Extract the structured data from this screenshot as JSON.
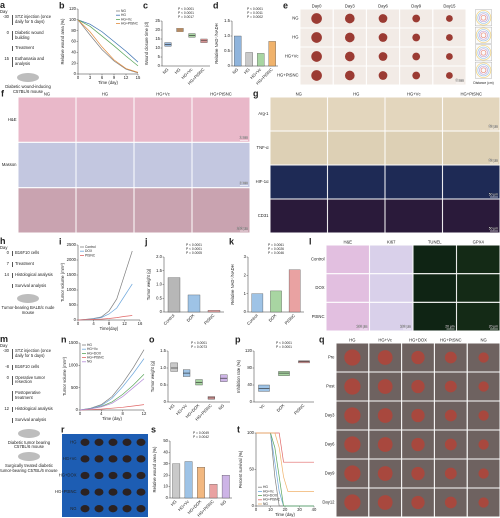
{
  "chart_data": [
    {
      "panel": "b",
      "type": "line",
      "xlabel": "Time (day)",
      "ylabel": "Relative wound area (%)",
      "x": [
        0,
        3,
        6,
        9,
        12,
        15
      ],
      "xlim": [
        0,
        15
      ],
      "xticks": [
        0,
        3,
        6,
        9,
        12,
        15
      ],
      "ylim": [
        0,
        120
      ],
      "yticks": [
        0,
        20,
        40,
        60,
        80,
        100,
        120
      ],
      "legend": "upper right",
      "series": [
        {
          "name": "NG",
          "color": "#7f7f7f",
          "values": [
            100,
            72,
            45,
            24,
            9,
            2
          ]
        },
        {
          "name": "HG",
          "color": "#3a6fb0",
          "values": [
            100,
            92,
            78,
            60,
            42,
            22
          ]
        },
        {
          "name": "HG+Vc",
          "color": "#5aa55a",
          "values": [
            100,
            88,
            70,
            52,
            33,
            15
          ]
        },
        {
          "name": "HG+PtSNC",
          "color": "#e08a3c",
          "values": [
            100,
            78,
            50,
            26,
            10,
            3
          ]
        }
      ]
    },
    {
      "panel": "c",
      "type": "box",
      "ylabel": "Wound closure time (d)",
      "categories": [
        "NG",
        "HG",
        "HG+Vc",
        "HG+PtSNC"
      ],
      "ylim": [
        0,
        25
      ],
      "yticks": [
        0,
        5,
        10,
        15,
        20,
        25
      ],
      "q1": [
        11,
        19,
        16,
        13
      ],
      "median": [
        12,
        20,
        17,
        14
      ],
      "q3": [
        13,
        21,
        18,
        15
      ],
      "colors": [
        "#9bbbe0",
        "#f2b880",
        "#a8d5a2",
        "#e8a0a0"
      ],
      "annotations": [
        "P < 0.0001",
        "P < 0.0001",
        "P = 0.0017"
      ]
    },
    {
      "panel": "d",
      "type": "bar",
      "ylabel": "Relative NAD⁺/NADH",
      "categories": [
        "NG",
        "HG",
        "HG+Vc",
        "HG+PtSNC"
      ],
      "values": [
        1.0,
        0.45,
        0.42,
        0.82
      ],
      "ylim": [
        0,
        1.5
      ],
      "yticks": [
        0,
        0.5,
        {
          "value": 1,
          "label": "1.0"
        },
        1.5
      ],
      "colors": [
        "#8fb4dc",
        "#c9c9c9",
        "#a8d5a2",
        "#f0b26b"
      ],
      "annotations": [
        "P < 0.0001",
        "P = 0.0011",
        "P = 0.0002"
      ]
    },
    {
      "panel": "i",
      "type": "line",
      "xlabel": "Time(day)",
      "ylabel": "Tumor volume (mm³)",
      "x": [
        0,
        2,
        4,
        6,
        8,
        10,
        12,
        14
      ],
      "xlim": [
        0,
        16
      ],
      "xticks": [
        0,
        4,
        8,
        12,
        16
      ],
      "ylim": [
        0,
        2500
      ],
      "yticks": [
        0,
        500,
        1000,
        1500,
        2000,
        2500
      ],
      "legend": "upper left",
      "series": [
        {
          "name": "Control",
          "color": "#7f7f7f",
          "values": [
            0,
            20,
            50,
            100,
            300,
            700,
            1500,
            2300
          ]
        },
        {
          "name": "DOX",
          "color": "#6fa8dc",
          "values": [
            0,
            15,
            40,
            80,
            200,
            400,
            800,
            1200
          ]
        },
        {
          "name": "PtSNC",
          "color": "#e06666",
          "values": [
            0,
            10,
            20,
            30,
            50,
            80,
            120,
            150
          ]
        }
      ]
    },
    {
      "panel": "j",
      "type": "bar",
      "ylabel": "Tumor weight (g)",
      "categories": [
        "Control",
        "DOX",
        "PtSNC"
      ],
      "values": [
        1.25,
        0.62,
        0.06
      ],
      "ylim": [
        0,
        2
      ],
      "yticks": [
        0,
        0.5,
        {
          "value": 1,
          "label": "1.0"
        },
        1.5,
        {
          "value": 2,
          "label": "2.0"
        }
      ],
      "colors": [
        "#b7b7b7",
        "#9ec3e6",
        "#e9a2a2"
      ],
      "annotations": [
        "P < 0.0001",
        "P < 0.0001",
        "P = 0.0005"
      ]
    },
    {
      "panel": "k",
      "type": "bar",
      "ylabel": "Relative NAD⁺/NADH",
      "categories": [
        "Control",
        "DOX",
        "PtSNC"
      ],
      "values": [
        1.0,
        1.15,
        2.3
      ],
      "ylim": [
        0,
        3
      ],
      "yticks": [
        0,
        1,
        2,
        3
      ],
      "colors": [
        "#9ec3e6",
        "#a8d5a2",
        "#e9a2a2"
      ],
      "annotations": [
        "P = 0.0061",
        "P = 0.0026",
        "P = 0.0046"
      ]
    },
    {
      "panel": "n",
      "type": "line",
      "xlabel": "Time (day)",
      "ylabel": "Tumor volume (mm³)",
      "x": [
        0,
        2,
        4,
        6,
        8,
        10,
        12
      ],
      "xlim": [
        0,
        12
      ],
      "xticks": [
        0,
        4,
        8,
        12
      ],
      "ylim": [
        0,
        1500
      ],
      "yticks": [
        0,
        500,
        1000,
        1500
      ],
      "legend": "upper left",
      "series": [
        {
          "name": "HG",
          "color": "#7f7f7f",
          "values": [
            0,
            40,
            120,
            300,
            600,
            950,
            1350
          ]
        },
        {
          "name": "HG+Vc",
          "color": "#6fa8dc",
          "values": [
            0,
            35,
            100,
            260,
            520,
            820,
            1150
          ]
        },
        {
          "name": "HG+DOX",
          "color": "#5aa55a",
          "values": [
            0,
            30,
            80,
            180,
            350,
            560,
            800
          ]
        },
        {
          "name": "HG+PtSNC",
          "color": "#e06666",
          "values": [
            0,
            10,
            20,
            40,
            60,
            90,
            120
          ]
        },
        {
          "name": "NG",
          "color": "#b48ad8",
          "values": [
            0,
            25,
            70,
            150,
            300,
            500,
            700
          ]
        }
      ]
    },
    {
      "panel": "o",
      "type": "box",
      "ylabel": "Tumor weight (g)",
      "categories": [
        "HG",
        "HG+Vc",
        "HG+DOX",
        "HG+PtSNC",
        "NG"
      ],
      "ylim": [
        0,
        1.5
      ],
      "yticks": [
        0,
        0.5,
        {
          "value": 1,
          "label": "1.0"
        },
        1.5
      ],
      "q1": [
        0.9,
        0.75,
        0.5,
        0.08,
        0.6
      ],
      "median": [
        1.0,
        0.85,
        0.58,
        0.12,
        0.7
      ],
      "q3": [
        1.15,
        0.95,
        0.66,
        0.16,
        0.8
      ],
      "colors": [
        "#c9c9c9",
        "#9ec3e6",
        "#a8d5a2",
        "#e9a2a2",
        "#cdb4e6"
      ],
      "annotations": [
        "P < 0.0001",
        "P = 0.0073"
      ]
    },
    {
      "panel": "p",
      "type": "box",
      "ylabel": "Inhibition rate (%)",
      "categories": [
        "Vc",
        "DOX",
        "PtSNC"
      ],
      "ylim": [
        0,
        120
      ],
      "yticks": [
        0,
        40,
        80,
        120
      ],
      "q1": [
        25,
        62,
        92
      ],
      "median": [
        32,
        68,
        95
      ],
      "q3": [
        40,
        72,
        97
      ],
      "colors": [
        "#9ec3e6",
        "#a8d5a2",
        "#e9a2a2"
      ],
      "annotations": [
        "P < 0.0001",
        "P = 0.0001"
      ]
    },
    {
      "panel": "s",
      "type": "bar",
      "ylabel": "Relative wound area (%)",
      "categories": [
        "HG",
        "HG+Vc",
        "HG+DOX",
        "HG+PtSNC",
        "NG"
      ],
      "values": [
        30,
        32,
        27,
        12,
        20
      ],
      "ylim": [
        0,
        50
      ],
      "yticks": [
        0,
        10,
        20,
        30,
        40,
        50
      ],
      "colors": [
        "#c9c9c9",
        "#9ec3e6",
        "#f2b880",
        "#e9a2a2",
        "#cdb4e6"
      ],
      "annotations": [
        "P = 0.0049",
        "P = 0.0042"
      ]
    },
    {
      "panel": "t",
      "type": "line",
      "xlabel": "Time (day)",
      "ylabel": "Percent survival (%)",
      "x": [
        0,
        10,
        13,
        16,
        19,
        22,
        40
      ],
      "xlim": [
        0,
        40
      ],
      "xticks": [
        0,
        10,
        20,
        30,
        40
      ],
      "ylim": [
        0,
        100
      ],
      "yticks": [
        0,
        50,
        100
      ],
      "legend": "lower left",
      "series": [
        {
          "name": "HG",
          "color": "#7f7f7f",
          "values": [
            100,
            100,
            40,
            0,
            0,
            0,
            0
          ]
        },
        {
          "name": "HG+Vc",
          "color": "#6fa8dc",
          "values": [
            100,
            100,
            60,
            20,
            0,
            0,
            0
          ]
        },
        {
          "name": "HG+DOX",
          "color": "#5aa55a",
          "values": [
            100,
            100,
            80,
            40,
            0,
            0,
            0
          ]
        },
        {
          "name": "HG+PtSNC",
          "color": "#e06666",
          "values": [
            100,
            100,
            100,
            100,
            60,
            60,
            60
          ]
        },
        {
          "name": "NG",
          "color": "#f0b26b",
          "values": [
            100,
            100,
            100,
            80,
            40,
            20,
            20
          ]
        }
      ]
    }
  ],
  "panels": [
    {
      "label": "a",
      "kind": "timeline",
      "axis_label": "Day",
      "events": [
        {
          "day": "-30",
          "text": "STZ injection (once daily for 5 days)"
        },
        {
          "day": "0",
          "text": "Diabetic wound building"
        },
        {
          "text": "Treatment"
        },
        {
          "day": "15",
          "text": "Euthanasia and analysis"
        }
      ],
      "captions": [
        "Diabetic wound-inducing C57BL/6 mouse"
      ]
    },
    {
      "label": "e",
      "kind": "grid",
      "rows": [
        "NG",
        "HG",
        "HG+Vc",
        "HG+PtSNC"
      ],
      "cols": [
        "Day0",
        "Day3",
        "Day6",
        "Day9",
        "Day15"
      ],
      "scale_bars": [
        "5 mm"
      ],
      "side_label": "Distance (cm)"
    },
    {
      "label": "f",
      "kind": "grid",
      "rows": [
        "H&E",
        "Masson",
        null
      ],
      "cols": [
        "NG",
        "HG",
        "HG+Vc",
        "HG+PtSNC"
      ],
      "scale_bars": [
        "2 mm",
        "2 mm",
        "200 μm"
      ]
    },
    {
      "label": "g",
      "kind": "grid",
      "rows": [
        "Arg-1",
        "TNF-α",
        "HIF-1α",
        "CD31"
      ],
      "cols": [
        "NG",
        "HG",
        "HG+Vc",
        "HG+PtSNC"
      ],
      "scale_bars": [
        "50 μm",
        "50 μm",
        "50 μm",
        "50 μm"
      ]
    },
    {
      "label": "h",
      "kind": "timeline",
      "axis_label": "Day",
      "events": [
        {
          "day": "0",
          "text": "B16F10 cells"
        },
        {
          "day": "7",
          "text": "Treatment"
        },
        {
          "day": "14",
          "text": "Histological analysis"
        },
        {
          "text": "Survival analysis"
        }
      ],
      "captions": [
        "Tumor-bearing BALB/c nude mouse"
      ]
    },
    {
      "label": "l",
      "kind": "grid",
      "rows": [
        "Control",
        "DOX",
        "PtSNC"
      ],
      "cols": [
        "H&E",
        "Ki67",
        "TUNEL",
        "GPX4"
      ],
      "scale_bars": [
        "100 μm",
        "100 μm",
        "20 μm",
        "20 μm"
      ]
    },
    {
      "label": "m",
      "kind": "timeline",
      "axis_label": "Day",
      "events": [
        {
          "day": "-30",
          "text": "STZ injection (once daily for 5 days)"
        },
        {
          "day": "-8",
          "text": "B16F10 cells"
        },
        {
          "day": "0",
          "text": "Operative tumor resection"
        },
        {
          "text": "Postoperative treatment"
        },
        {
          "day": "12",
          "text": "Histological analysis"
        },
        {
          "text": "Survival analysis"
        }
      ],
      "captions": [
        "Diabetic tumor bearing C57BL/6 mouse",
        "Surgically treated diabetic tumor-bearing C57BL/6 mouse"
      ]
    },
    {
      "label": "q",
      "kind": "grid",
      "rows": [
        "Pre",
        "Post",
        "Day3",
        "Day6",
        "Day9",
        "Day12"
      ],
      "cols": [
        "HG",
        "HG+Vc",
        "HG+DOX",
        "HG+PtSNC",
        "NG"
      ]
    },
    {
      "label": "r",
      "kind": "grid",
      "rows": [
        "HG",
        "HG+Vc",
        "HG+DOX",
        "HG+PtSNC",
        "NG"
      ]
    }
  ]
}
